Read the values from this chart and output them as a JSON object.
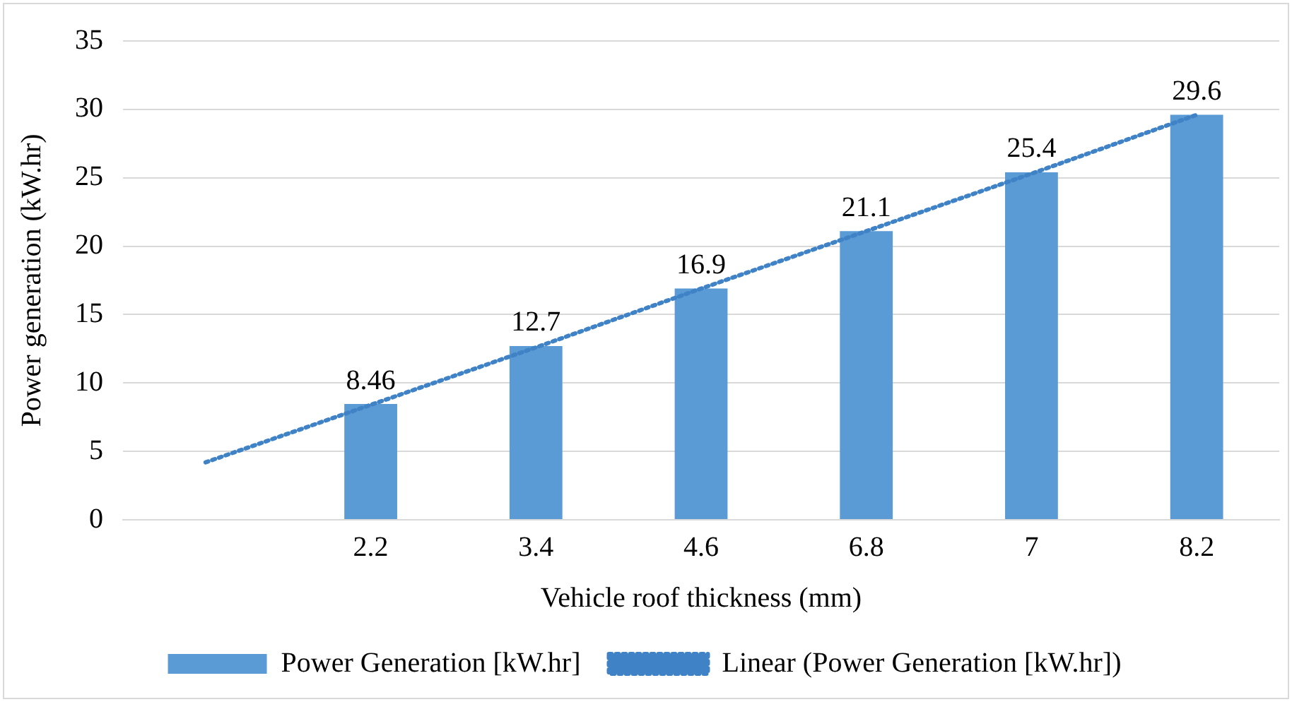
{
  "chart_data": {
    "type": "bar",
    "xlabel": "Vehicle roof thickness (mm)",
    "ylabel": "Power generation (kW.hr)",
    "categories": [
      null,
      "2.2",
      "3.4",
      "4.6",
      "6.8",
      "7",
      "8.2"
    ],
    "series": [
      {
        "name": "Power Generation [kW.hr]",
        "color": "#5b9bd5",
        "values": [
          null,
          8.46,
          12.7,
          16.9,
          21.1,
          25.4,
          29.6
        ],
        "value_labels": [
          null,
          "8.46",
          "12.7",
          "16.9",
          "21.1",
          "25.4",
          "29.6"
        ]
      },
      {
        "name": "Linear (Power Generation [kW.hr])",
        "type": "line",
        "color": "#3f83c6",
        "line_style": "dotted",
        "marker": "none",
        "values": [
          4.2,
          8.4,
          12.6,
          16.9,
          21.1,
          25.3,
          29.6
        ]
      }
    ],
    "ylim": [
      0,
      35
    ],
    "yticks": [
      0,
      5,
      10,
      15,
      20,
      25,
      30,
      35
    ],
    "grid": "y",
    "legend": "bottom"
  }
}
